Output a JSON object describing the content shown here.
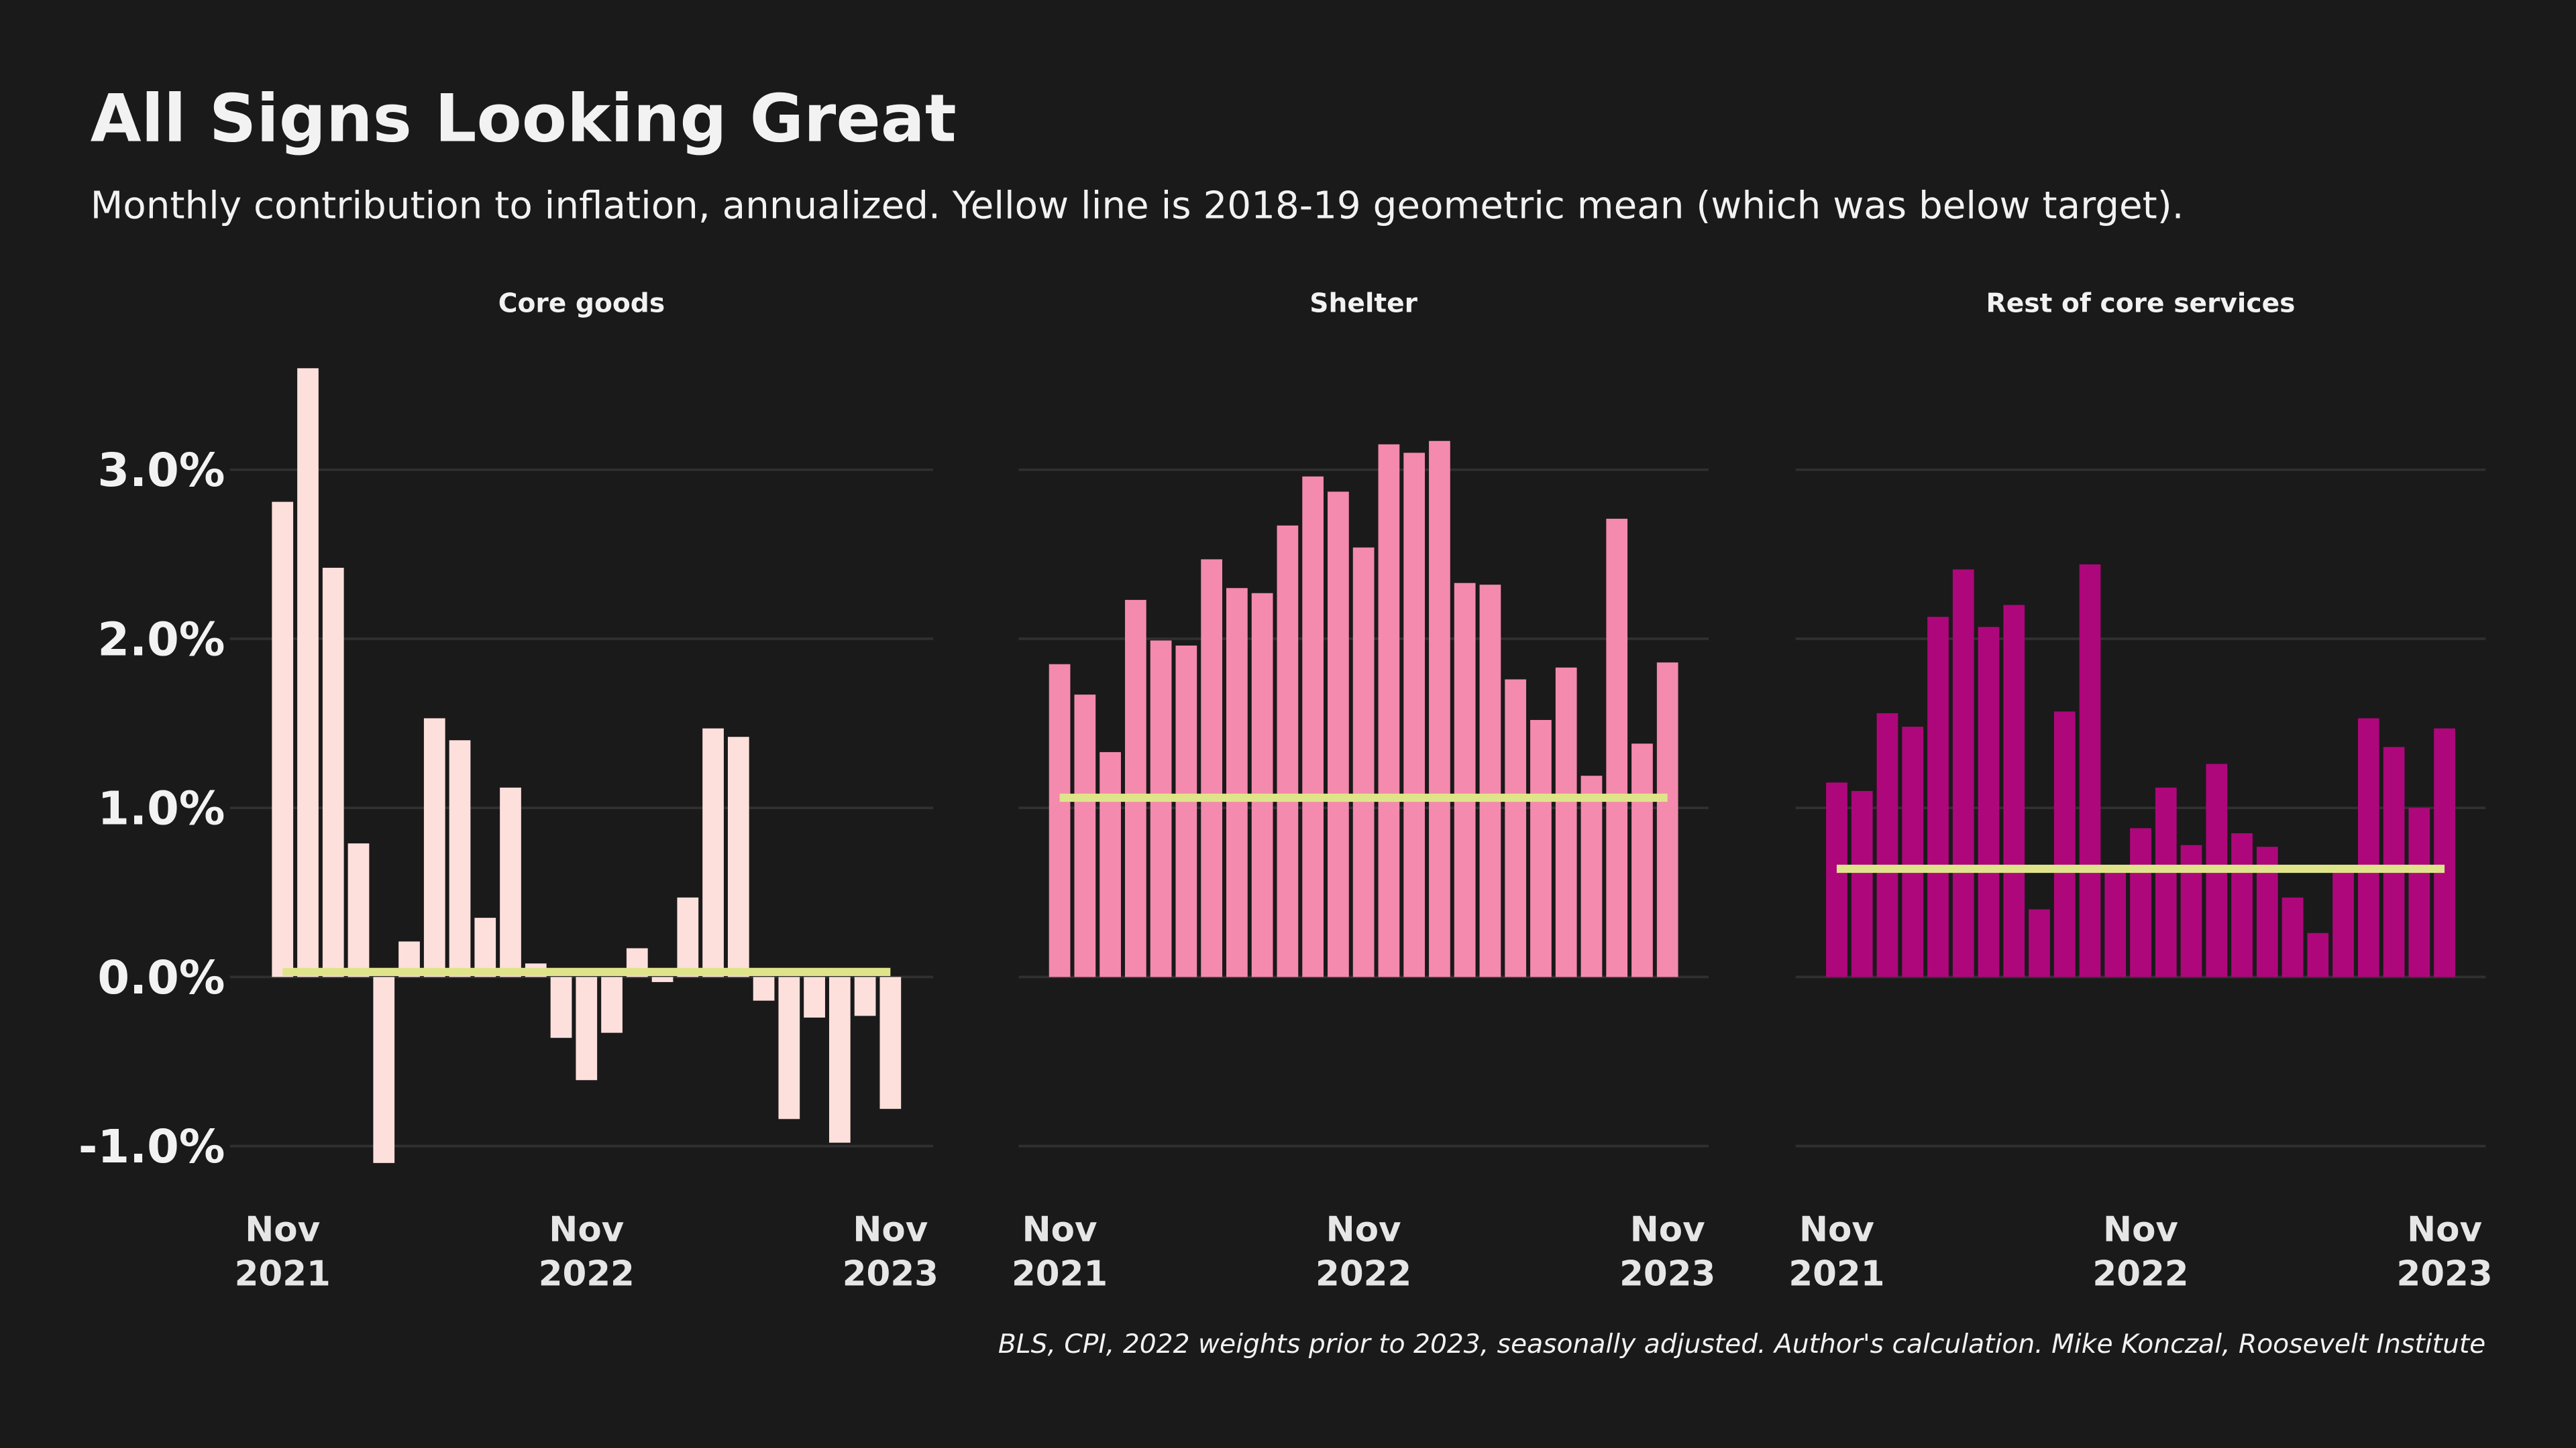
{
  "header": {
    "title": "All Signs Looking Great",
    "subtitle": "Monthly contribution to inflation, annualized. Yellow line is 2018-19 geometric mean (which was below target).",
    "source": "BLS, CPI, 2022 weights prior to 2023, seasonally adjusted. Author's calculation. Mike Konczal, Roosevelt Institute"
  },
  "chart_data": [
    {
      "type": "bar",
      "title": "Core goods",
      "color": "#fde0dc",
      "mean": 0.03,
      "mean_color": "#dfe48a",
      "categories": [
        "Nov\n2021",
        null,
        null,
        null,
        null,
        null,
        null,
        null,
        null,
        null,
        null,
        null,
        "Nov\n2022",
        null,
        null,
        null,
        null,
        null,
        null,
        null,
        null,
        null,
        null,
        null,
        "Nov\n2023"
      ],
      "values": [
        2.81,
        3.6,
        2.42,
        0.79,
        -1.1,
        0.21,
        1.53,
        1.4,
        0.35,
        1.12,
        0.08,
        -0.36,
        -0.61,
        -0.33,
        0.17,
        -0.03,
        0.47,
        1.47,
        1.42,
        -0.14,
        -0.84,
        -0.24,
        -0.98,
        -0.23,
        -0.78
      ],
      "ylim": [
        -1.3,
        3.7
      ],
      "yticks": [
        {
          "value": -1,
          "label": "-1.0%"
        },
        {
          "value": 0,
          "label": "0.0%"
        },
        {
          "value": 1,
          "label": "1.0%"
        },
        {
          "value": 2,
          "label": "2.0%"
        },
        {
          "value": 3,
          "label": "3.0%"
        }
      ],
      "grid": true
    },
    {
      "type": "bar",
      "title": "Shelter",
      "color": "#f48aad",
      "mean": 1.06,
      "mean_color": "#dfe48a",
      "categories": [
        "Nov\n2021",
        null,
        null,
        null,
        null,
        null,
        null,
        null,
        null,
        null,
        null,
        null,
        "Nov\n2022",
        null,
        null,
        null,
        null,
        null,
        null,
        null,
        null,
        null,
        null,
        null,
        "Nov\n2023"
      ],
      "values": [
        1.85,
        1.67,
        1.33,
        2.23,
        1.99,
        1.96,
        2.47,
        2.3,
        2.27,
        2.67,
        2.96,
        2.87,
        2.54,
        3.15,
        3.1,
        3.17,
        2.33,
        2.32,
        1.76,
        1.52,
        1.83,
        1.19,
        2.71,
        1.38,
        1.86
      ],
      "ylim": [
        -1.3,
        3.7
      ],
      "yticks": [
        -1,
        0,
        1,
        2,
        3
      ],
      "grid": true
    },
    {
      "type": "bar",
      "title": "Rest of core services",
      "color": "#ae077b",
      "mean": 0.64,
      "mean_color": "#dfe48a",
      "categories": [
        "Nov\n2021",
        null,
        null,
        null,
        null,
        null,
        null,
        null,
        null,
        null,
        null,
        null,
        "Nov\n2022",
        null,
        null,
        null,
        null,
        null,
        null,
        null,
        null,
        null,
        null,
        null,
        "Nov\n2023"
      ],
      "values": [
        1.15,
        1.1,
        1.56,
        1.48,
        2.13,
        2.41,
        2.07,
        2.2,
        0.4,
        1.57,
        2.44,
        0.64,
        0.88,
        1.12,
        0.78,
        1.26,
        0.85,
        0.77,
        0.47,
        0.26,
        0.63,
        1.53,
        1.36,
        1.0,
        1.47
      ],
      "ylim": [
        -1.3,
        3.7
      ],
      "yticks": [
        -1,
        0,
        1,
        2,
        3
      ],
      "grid": true
    }
  ]
}
